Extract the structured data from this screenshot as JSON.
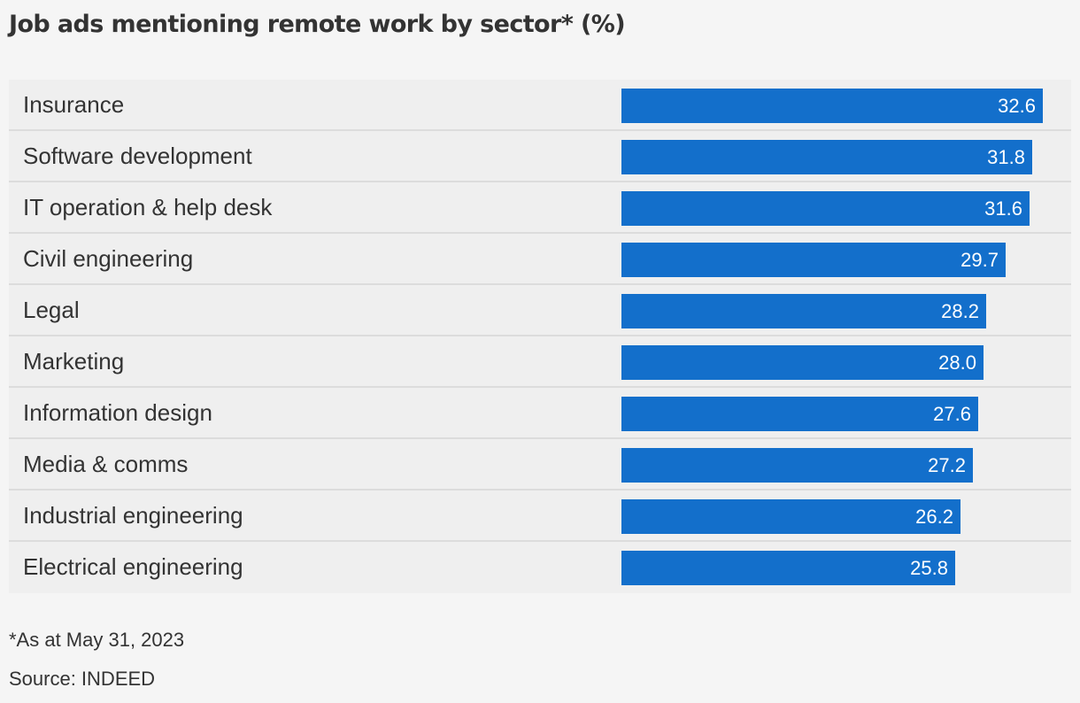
{
  "chart_data": {
    "type": "bar",
    "orientation": "horizontal",
    "title": "Job ads mentioning remote work by sector* (%)",
    "categories": [
      "Insurance",
      "Software development",
      "IT operation & help desk",
      "Civil engineering",
      "Legal",
      "Marketing",
      "Information design",
      "Media & comms",
      "Industrial engineering",
      "Electrical engineering"
    ],
    "values": [
      32.6,
      31.8,
      31.6,
      29.7,
      28.2,
      28.0,
      27.6,
      27.2,
      26.2,
      25.8
    ],
    "value_labels": [
      "32.6",
      "31.8",
      "31.6",
      "29.7",
      "28.2",
      "28.0",
      "27.6",
      "27.2",
      "26.2",
      "25.8"
    ],
    "xlim": [
      0,
      32.6
    ],
    "bar_color": "#136fcb",
    "grid": false,
    "legend": "none"
  },
  "footnote": "*As at May 31, 2023",
  "source": "Source: INDEED"
}
